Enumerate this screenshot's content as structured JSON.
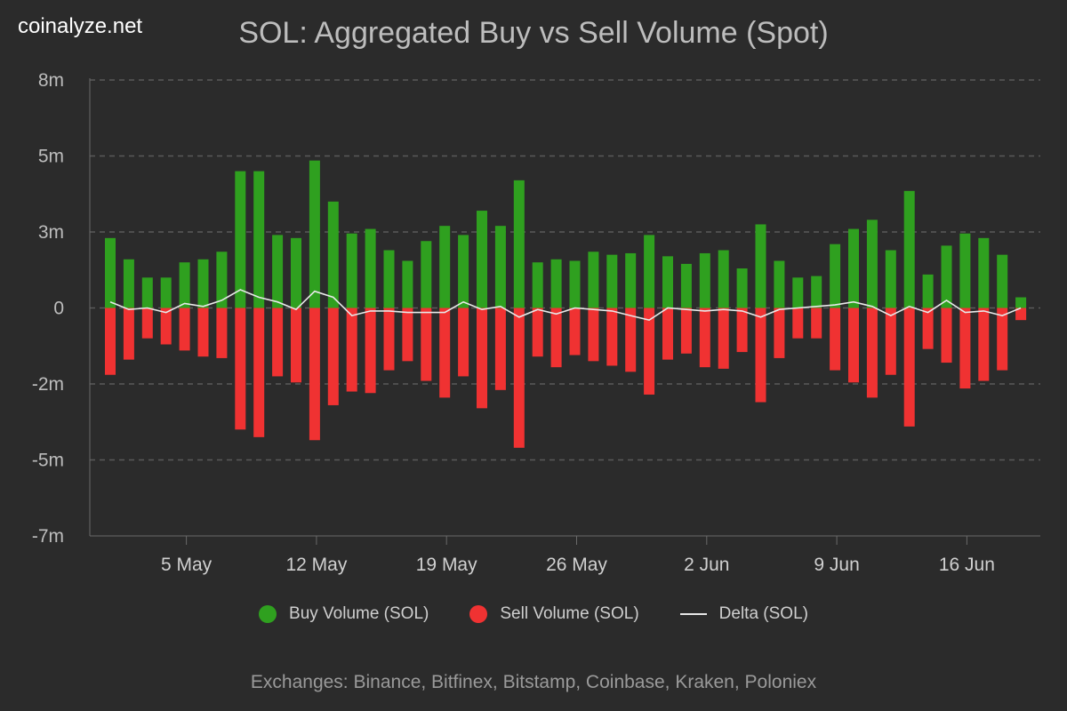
{
  "brand": "coinalyze.net",
  "chart_data": {
    "type": "bar",
    "title": "SOL: Aggregated Buy vs Sell Volume (Spot)",
    "y_ticks": [
      "8m",
      "5m",
      "3m",
      "0",
      "-2m",
      "-5m",
      "-7m"
    ],
    "y_tick_values": [
      7.5,
      5,
      2.5,
      0,
      -2.5,
      -5,
      -7.5
    ],
    "ylim": [
      -7.5,
      7.5
    ],
    "x_ticks": [
      {
        "label": "5 May",
        "index": 4
      },
      {
        "label": "12 May",
        "index": 11
      },
      {
        "label": "19 May",
        "index": 18
      },
      {
        "label": "26 May",
        "index": 25
      },
      {
        "label": "2 Jun",
        "index": 32
      },
      {
        "label": "9 Jun",
        "index": 39
      },
      {
        "label": "16 Jun",
        "index": 46
      }
    ],
    "series": [
      {
        "name": "Buy Volume (SOL)",
        "color": "#2fa01f",
        "values": [
          2.3,
          1.6,
          1.0,
          1.0,
          1.5,
          1.6,
          1.85,
          4.5,
          4.5,
          2.4,
          2.3,
          4.85,
          3.5,
          2.45,
          2.6,
          1.9,
          1.55,
          2.2,
          2.7,
          2.4,
          3.2,
          2.7,
          4.2,
          1.5,
          1.6,
          1.55,
          1.85,
          1.75,
          1.8,
          2.4,
          1.7,
          1.45,
          1.8,
          1.9,
          1.3,
          2.75,
          1.55,
          1.0,
          1.05,
          2.1,
          2.6,
          2.9,
          1.9,
          3.85,
          1.1,
          2.05,
          2.45,
          2.3,
          1.75,
          0.35
        ]
      },
      {
        "name": "Sell Volume (SOL)",
        "color": "#f03232",
        "values": [
          -2.2,
          -1.7,
          -1.0,
          -1.2,
          -1.4,
          -1.6,
          -1.65,
          -4.0,
          -4.25,
          -2.25,
          -2.45,
          -4.35,
          -3.2,
          -2.75,
          -2.8,
          -2.05,
          -1.75,
          -2.4,
          -2.95,
          -2.25,
          -3.3,
          -2.7,
          -4.6,
          -1.6,
          -1.95,
          -1.55,
          -1.75,
          -1.9,
          -2.1,
          -2.85,
          -1.7,
          -1.5,
          -1.95,
          -2.0,
          -1.45,
          -3.1,
          -1.65,
          -1.0,
          -1.0,
          -2.05,
          -2.45,
          -2.95,
          -2.2,
          -3.9,
          -1.35,
          -1.8,
          -2.65,
          -2.4,
          -2.05,
          -0.4
        ]
      },
      {
        "name": "Delta (SOL)",
        "color": "#e8e8e8",
        "values": [
          0.2,
          -0.05,
          0.0,
          -0.15,
          0.15,
          0.05,
          0.25,
          0.6,
          0.35,
          0.2,
          -0.05,
          0.55,
          0.35,
          -0.25,
          -0.1,
          -0.1,
          -0.15,
          -0.15,
          -0.15,
          0.2,
          -0.05,
          0.05,
          -0.3,
          -0.05,
          -0.2,
          0.0,
          -0.05,
          -0.1,
          -0.25,
          -0.4,
          0.0,
          -0.05,
          -0.1,
          -0.05,
          -0.1,
          -0.3,
          -0.05,
          0.0,
          0.05,
          0.1,
          0.2,
          0.05,
          -0.25,
          0.05,
          -0.15,
          0.25,
          -0.15,
          -0.1,
          -0.25,
          0.0
        ]
      }
    ]
  },
  "legend": {
    "buy_label": "Buy Volume (SOL)",
    "sell_label": "Sell Volume (SOL)",
    "delta_label": "Delta (SOL)",
    "buy_color": "#2fa01f",
    "sell_color": "#f03232",
    "delta_color": "#e8e8e8"
  },
  "footer": "Exchanges: Binance, Bitfinex, Bitstamp, Coinbase, Kraken, Poloniex"
}
